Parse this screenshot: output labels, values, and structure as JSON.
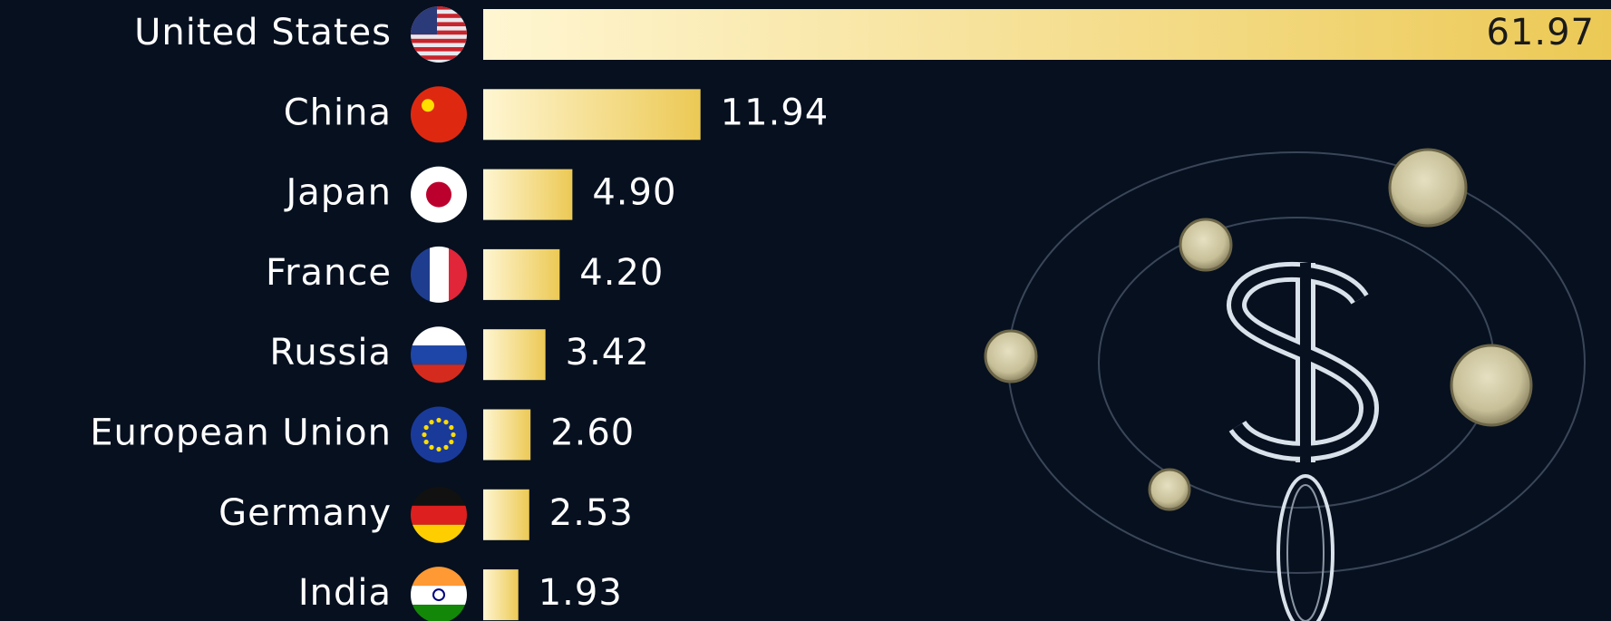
{
  "chart_data": {
    "type": "bar",
    "orientation": "horizontal",
    "categories": [
      "United States",
      "China",
      "Japan",
      "France",
      "Russia",
      "European Union",
      "Germany",
      "India"
    ],
    "values": [
      61.97,
      11.94,
      4.9,
      4.2,
      3.42,
      2.6,
      2.53,
      1.93
    ],
    "value_labels": [
      "61.97",
      "11.94",
      "4.90",
      "4.20",
      "3.42",
      "2.60",
      "2.53",
      "1.93"
    ],
    "color": "#f0cf63"
  }
}
